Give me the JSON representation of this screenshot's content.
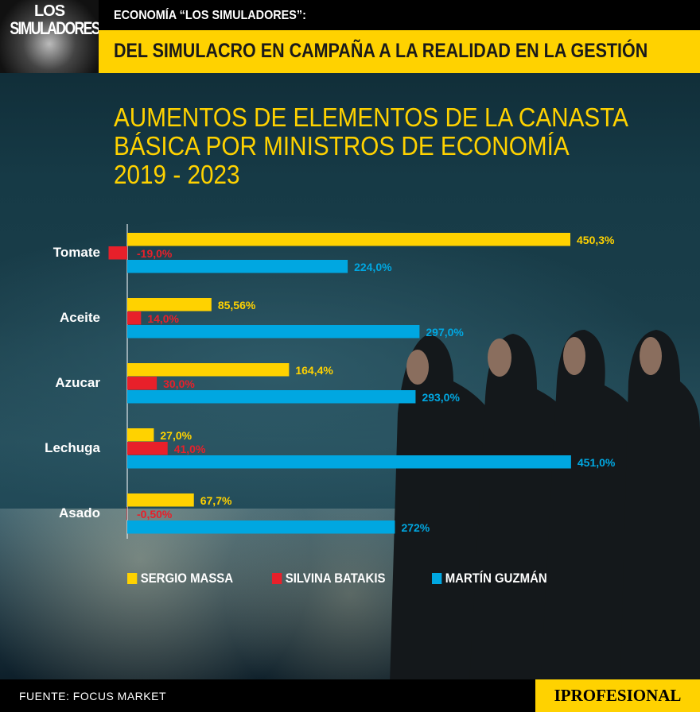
{
  "header": {
    "logo_text": [
      "LOS",
      "SIMULADORES"
    ],
    "kicker": "ECONOMÍA “LOS SIMULADORES”:",
    "headline": "DEL SIMULACRO EN CAMPAÑA A LA REALIDAD EN LA GESTIÓN"
  },
  "chart_data": {
    "type": "bar",
    "orientation": "horizontal",
    "title": "AUMENTOS DE ELEMENTOS DE LA CANASTA BÁSICA POR MINISTROS DE ECONOMÍA 2019 - 2023",
    "title_lines": [
      "AUMENTOS DE ELEMENTOS DE LA CANASTA",
      "BÁSICA POR MINISTROS DE ECONOMÍA",
      "2019 - 2023"
    ],
    "categories": [
      "Tomate",
      "Aceite",
      "Azucar",
      "Lechuga",
      "Asado"
    ],
    "series": [
      {
        "name": "SERGIO MASSA",
        "color": "#ffd200",
        "values": [
          450.3,
          85.56,
          164.4,
          27.0,
          67.7
        ],
        "labels": [
          "450,3%",
          "85,56%",
          "164,4%",
          "27,0%",
          "67,7%"
        ]
      },
      {
        "name": "SILVINA BATAKIS",
        "color": "#e8202a",
        "values": [
          -19.0,
          14.0,
          30.0,
          41.0,
          -0.5
        ],
        "labels": [
          "-19,0%",
          "14,0%",
          "30,0%",
          "41,0%",
          "-0,50%"
        ]
      },
      {
        "name": "MARTÍN GUZMÁN",
        "color": "#00a7e1",
        "values": [
          224.0,
          297.0,
          293.0,
          451.0,
          272
        ],
        "labels": [
          "224,0%",
          "297,0%",
          "293,0%",
          "451,0%",
          "272%"
        ]
      }
    ],
    "legend_position": "bottom-left",
    "grid": false
  },
  "footer": {
    "source": "FUENTE: FOCUS MARKET",
    "brand": "IPROFESIONAL"
  }
}
